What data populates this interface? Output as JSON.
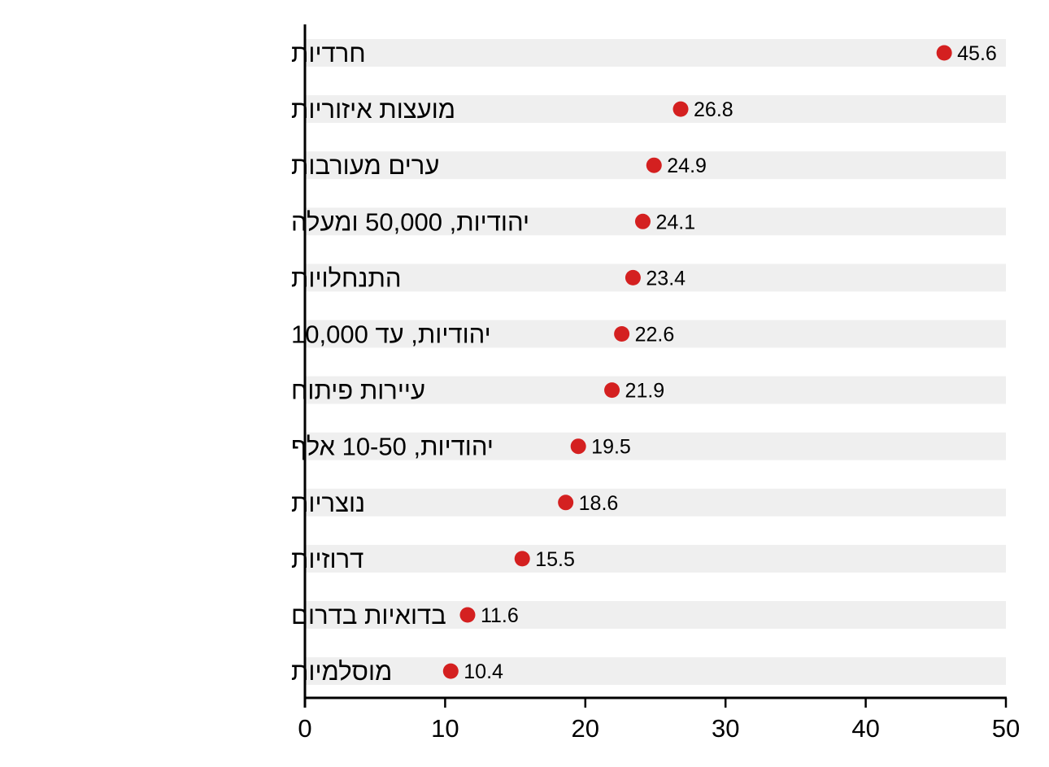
{
  "chart_data": {
    "type": "scatter",
    "orientation": "horizontal",
    "categories": [
      "חרדיות",
      "מועצות איזוריות",
      "ערים מעורבות",
      "יהודיות, 50,000 ומעלה",
      "התנחלויות",
      "יהודיות,  עד 10,000",
      "עיירות פיתוח",
      "יהודיות, 10-50 אלף",
      "נוצריות",
      "דרוזיות",
      "בדואיות בדרום",
      "מוסלמיות"
    ],
    "values": [
      45.6,
      26.8,
      24.9,
      24.1,
      23.4,
      22.6,
      21.9,
      19.5,
      18.6,
      15.5,
      11.6,
      10.4
    ],
    "value_labels": [
      "45.6",
      "26.8",
      "24.9",
      "24.1",
      "23.4",
      "22.6",
      "21.9",
      "19.5",
      "18.6",
      "15.5",
      "11.6",
      "10.4"
    ],
    "xlim": [
      0,
      50
    ],
    "xticks": [
      0,
      10,
      20,
      30,
      40,
      50
    ],
    "xtick_labels": [
      "0",
      "10",
      "20",
      "30",
      "40",
      "50"
    ],
    "title": "",
    "xlabel": "",
    "ylabel": "",
    "grid": false,
    "legend": "none",
    "colors": {
      "marker": "#d42020",
      "row_band": "#efefef",
      "axis": "#000000"
    }
  }
}
